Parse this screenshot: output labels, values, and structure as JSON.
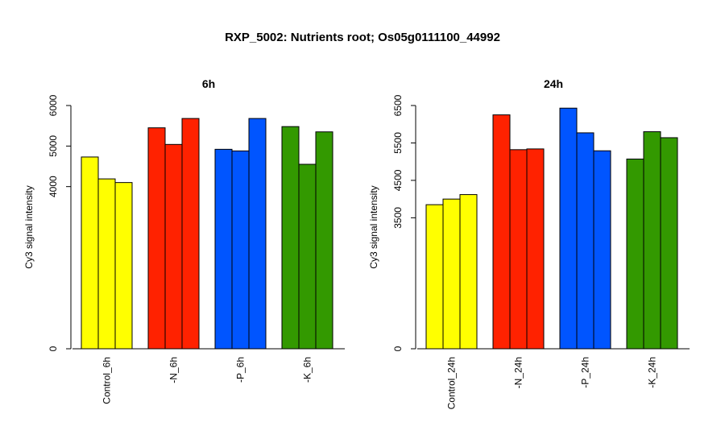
{
  "title": "RXP_5002: Nutrients root; Os05g0111100_44992",
  "chart_data": [
    {
      "type": "bar",
      "title": "6h",
      "ylabel": "Cy3 signal intensity",
      "ylim": [
        0,
        6000
      ],
      "yticks": [
        0,
        4000,
        5000,
        6000
      ],
      "categories": [
        "Control_6h",
        "-N_6h",
        "-P_6h",
        "-K_6h"
      ],
      "colors": [
        "#FFFF00",
        "#FF2200",
        "#0055FF",
        "#339900"
      ],
      "values": [
        [
          4730,
          4190,
          4100
        ],
        [
          5450,
          5040,
          5680
        ],
        [
          4920,
          4880,
          5680
        ],
        [
          5480,
          4550,
          5350
        ]
      ]
    },
    {
      "type": "bar",
      "title": "24h",
      "ylabel": "Cy3 signal intensity",
      "ylim": [
        0,
        6500
      ],
      "yticks": [
        0,
        3500,
        4500,
        5500,
        6500
      ],
      "categories": [
        "Control_24h",
        "-N_24h",
        "-P_24h",
        "-K_24h"
      ],
      "colors": [
        "#FFFF00",
        "#FF2200",
        "#0055FF",
        "#339900"
      ],
      "values": [
        [
          3850,
          4000,
          4120
        ],
        [
          6250,
          5320,
          5340
        ],
        [
          6430,
          5770,
          5290
        ],
        [
          5070,
          5800,
          5640
        ]
      ]
    }
  ]
}
